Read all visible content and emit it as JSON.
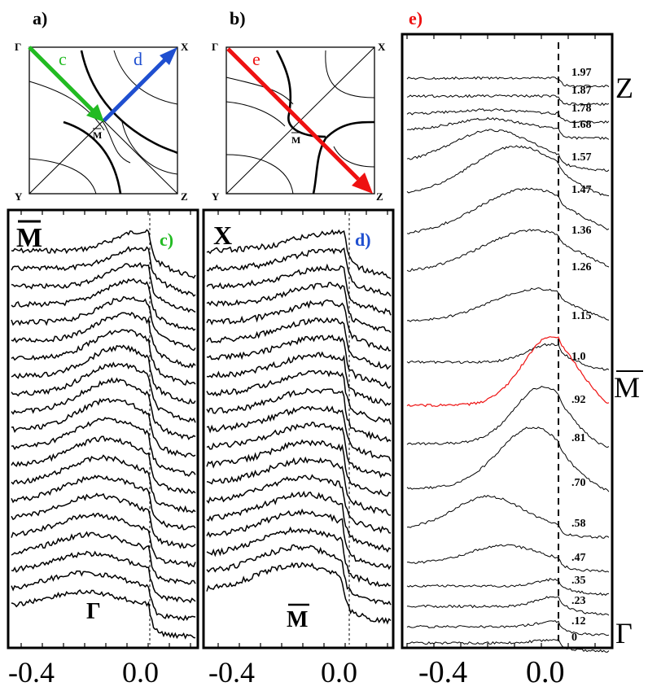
{
  "colors": {
    "green": "#22bb22",
    "blue": "#1f4fd0",
    "red": "#ee1111",
    "black": "#000000"
  },
  "panels": {
    "a": {
      "tag": "a)",
      "corners": {
        "tl": "Γ",
        "tr": "X",
        "bl": "Y",
        "br": "Z"
      },
      "center": "M",
      "arrow_labels": [
        "c",
        "d"
      ]
    },
    "b": {
      "tag": "b)",
      "corners": {
        "tl": "Γ",
        "tr": "X",
        "bl": "Y",
        "br": "Z"
      },
      "center": "M",
      "arrow_labels": [
        "e"
      ]
    },
    "c": {
      "tag": "c)",
      "top_label": "M",
      "bottom_label": "Γ"
    },
    "d": {
      "tag": "d)",
      "top_label": "X",
      "bottom_label": "M"
    },
    "e": {
      "tag": "e)",
      "top_right_label": "Z",
      "mid_right_label": "M",
      "bottom_right_label": "Γ"
    }
  },
  "chart_data": [
    {
      "panel": "c",
      "type": "line",
      "xlim": [
        -0.55,
        0.18
      ],
      "ticks": [
        "-0.4",
        "0.0"
      ],
      "tick_values": [
        -0.4,
        0.0
      ],
      "n_curves": 21,
      "description_of_series": ""
    },
    {
      "panel": "d",
      "type": "line",
      "xlim": [
        -0.55,
        0.18
      ],
      "ticks": [
        "-0.4",
        "0.0"
      ],
      "tick_values": [
        -0.4,
        0.0
      ],
      "n_curves": 20
    },
    {
      "panel": "e",
      "type": "line",
      "xlim": [
        -0.58,
        0.2
      ],
      "ticks": [
        "-0.4",
        "0.0"
      ],
      "tick_values": [
        -0.4,
        0.0
      ],
      "fermi_level": 0.0,
      "curve_labels": [
        "1.97",
        "1.87",
        "1.78",
        "1.68",
        "1.57",
        "1.47",
        "1.36",
        "1.26",
        "1.15",
        "1.0",
        ".92",
        ".81",
        ".70",
        ".58",
        ".47",
        ".35",
        ".23",
        ".12",
        "0"
      ],
      "highlighted_curve": ".92",
      "highlight_color": "#ee1111"
    }
  ]
}
